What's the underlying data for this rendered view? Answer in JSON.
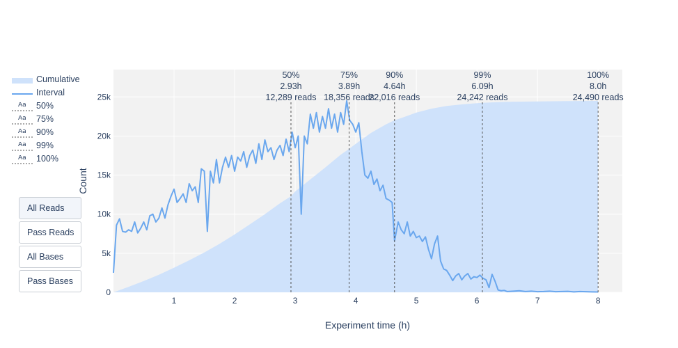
{
  "legend": {
    "items": [
      {
        "label": "Cumulative",
        "kind": "fill",
        "color": "#cfe2fb"
      },
      {
        "label": "Interval",
        "kind": "line",
        "color": "#6aa7ee"
      },
      {
        "label": "50%",
        "kind": "annot",
        "glyph": "Aa"
      },
      {
        "label": "75%",
        "kind": "annot",
        "glyph": "Aa"
      },
      {
        "label": "90%",
        "kind": "annot",
        "glyph": "Aa"
      },
      {
        "label": "99%",
        "kind": "annot",
        "glyph": "Aa"
      },
      {
        "label": "100%",
        "kind": "annot",
        "glyph": "Aa"
      }
    ]
  },
  "buttons": [
    {
      "label": "All Reads",
      "active": true
    },
    {
      "label": "Pass Reads",
      "active": false
    },
    {
      "label": "All Bases",
      "active": false
    },
    {
      "label": "Pass Bases",
      "active": false
    }
  ],
  "chart_data": {
    "type": "area",
    "xlabel": "Experiment time (h)",
    "ylabel": "Count",
    "xlim": [
      0,
      8.4
    ],
    "ylim": [
      0,
      28500
    ],
    "xticks": [
      1,
      2,
      3,
      4,
      5,
      6,
      7,
      8
    ],
    "xtick_labels": [
      "1",
      "2",
      "3",
      "4",
      "5",
      "6",
      "7",
      "8"
    ],
    "yticks": [
      0,
      5000,
      10000,
      15000,
      20000,
      25000
    ],
    "ytick_labels": [
      "0",
      "5k",
      "10k",
      "15k",
      "20k",
      "25k"
    ],
    "grid": true,
    "legend_position": "top-left",
    "colors": {
      "cumulative_fill": "#cfe2fb",
      "interval_line": "#6aa7ee",
      "plot_bg": "#f2f2f2",
      "grid": "#ffffff",
      "vline": "#555555"
    },
    "series": [
      {
        "name": "Cumulative",
        "x": [
          0,
          0.25,
          0.5,
          0.75,
          1.0,
          1.25,
          1.5,
          1.75,
          2.0,
          2.25,
          2.5,
          2.75,
          2.93,
          3.0,
          3.25,
          3.5,
          3.75,
          3.89,
          4.0,
          4.25,
          4.5,
          4.64,
          4.75,
          5.0,
          5.25,
          5.5,
          5.75,
          6.0,
          6.09,
          6.25,
          6.5,
          7.0,
          7.5,
          8.0
        ],
        "y": [
          0,
          700,
          1450,
          2250,
          3150,
          4100,
          5100,
          6200,
          7400,
          8700,
          10000,
          11400,
          12289,
          12900,
          14450,
          16000,
          17600,
          18356,
          19000,
          20400,
          21500,
          22016,
          22300,
          23000,
          23500,
          23850,
          24050,
          24200,
          24242,
          24300,
          24380,
          24430,
          24470,
          24490
        ]
      },
      {
        "name": "Interval",
        "x": [
          0,
          0.05,
          0.1,
          0.15,
          0.2,
          0.25,
          0.3,
          0.35,
          0.4,
          0.45,
          0.5,
          0.55,
          0.6,
          0.65,
          0.7,
          0.75,
          0.8,
          0.85,
          0.9,
          0.95,
          1.0,
          1.05,
          1.1,
          1.15,
          1.2,
          1.25,
          1.3,
          1.35,
          1.4,
          1.45,
          1.5,
          1.55,
          1.6,
          1.65,
          1.7,
          1.75,
          1.8,
          1.85,
          1.9,
          1.95,
          2.0,
          2.05,
          2.1,
          2.15,
          2.2,
          2.25,
          2.3,
          2.35,
          2.4,
          2.45,
          2.5,
          2.55,
          2.6,
          2.65,
          2.7,
          2.75,
          2.8,
          2.85,
          2.9,
          2.95,
          3.0,
          3.05,
          3.1,
          3.15,
          3.2,
          3.25,
          3.3,
          3.35,
          3.4,
          3.45,
          3.5,
          3.55,
          3.6,
          3.65,
          3.7,
          3.75,
          3.8,
          3.85,
          3.9,
          3.95,
          4.0,
          4.05,
          4.1,
          4.15,
          4.2,
          4.25,
          4.3,
          4.35,
          4.4,
          4.45,
          4.5,
          4.55,
          4.6,
          4.64,
          4.7,
          4.75,
          4.8,
          4.85,
          4.9,
          4.95,
          5.0,
          5.05,
          5.1,
          5.15,
          5.2,
          5.25,
          5.3,
          5.35,
          5.4,
          5.45,
          5.5,
          5.55,
          5.6,
          5.65,
          5.7,
          5.75,
          5.8,
          5.85,
          5.9,
          5.95,
          6.0,
          6.05,
          6.1,
          6.15,
          6.2,
          6.25,
          6.3,
          6.35,
          6.4,
          6.45,
          6.5,
          6.6,
          6.7,
          6.8,
          6.9,
          7.0,
          7.1,
          7.2,
          7.3,
          7.4,
          7.5,
          7.6,
          7.7,
          7.8,
          7.9,
          8.0
        ],
        "y": [
          2500,
          8600,
          9400,
          7800,
          7700,
          8000,
          7800,
          9000,
          7600,
          8200,
          9000,
          8000,
          9800,
          10000,
          9000,
          9500,
          10800,
          9500,
          11200,
          12300,
          13200,
          11500,
          12000,
          12600,
          11500,
          13900,
          13000,
          13500,
          11500,
          15800,
          15500,
          7800,
          15500,
          14000,
          17000,
          14000,
          16000,
          17300,
          16000,
          17500,
          15500,
          17300,
          16800,
          18000,
          16000,
          17500,
          18200,
          16500,
          19000,
          17000,
          19500,
          18000,
          18500,
          17000,
          18200,
          18800,
          17500,
          19600,
          18000,
          20500,
          18500,
          20000,
          10000,
          20000,
          19000,
          22800,
          21000,
          23000,
          20500,
          22500,
          21000,
          23500,
          21000,
          22800,
          20500,
          23000,
          21500,
          24500,
          22000,
          21500,
          20500,
          21700,
          18000,
          15000,
          14600,
          15500,
          13800,
          14500,
          13000,
          13700,
          12000,
          11800,
          11500,
          6600,
          9000,
          8000,
          7500,
          9000,
          7200,
          7800,
          7000,
          7200,
          6500,
          7100,
          5500,
          4300,
          6200,
          7200,
          4000,
          3000,
          2800,
          2200,
          1500,
          2100,
          2400,
          1600,
          2100,
          2400,
          1700,
          2000,
          1900,
          2200,
          1800,
          1600,
          600,
          2300,
          1400,
          300,
          200,
          250,
          100,
          150,
          200,
          100,
          150,
          80,
          100,
          150,
          80,
          100,
          120,
          60,
          100,
          80,
          60,
          50
        ]
      }
    ],
    "annotations": [
      {
        "label": "50%",
        "time_label": "2.93h",
        "reads_label": "12,289 reads",
        "x": 2.93
      },
      {
        "label": "75%",
        "time_label": "3.89h",
        "reads_label": "18,356 reads",
        "x": 3.89
      },
      {
        "label": "90%",
        "time_label": "4.64h",
        "reads_label": "22,016 reads",
        "x": 4.64
      },
      {
        "label": "99%",
        "time_label": "6.09h",
        "reads_label": "24,242 reads",
        "x": 6.09
      },
      {
        "label": "100%",
        "time_label": "8.0h",
        "reads_label": "24,490 reads",
        "x": 8.0
      }
    ]
  }
}
